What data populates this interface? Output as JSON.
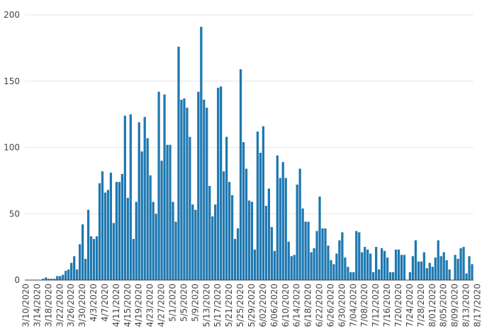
{
  "chart_data": {
    "type": "bar",
    "title": "",
    "xlabel": "",
    "ylabel": "",
    "ylim": [
      0,
      200
    ],
    "yticks": [
      0,
      50,
      100,
      150,
      200
    ],
    "grid": true,
    "bar_color": "#1f78b0",
    "start_date": "3/10/2020",
    "xtick_labels": [
      "3/10/2020",
      "3/14/2020",
      "3/18/2020",
      "3/22/2020",
      "3/26/2020",
      "3/30/2020",
      "4/3/2020",
      "4/7/2020",
      "4/11/2020",
      "4/15/2020",
      "4/19/2020",
      "4/23/2020",
      "4/27/2020",
      "5/1/2020",
      "5/5/2020",
      "5/9/2020",
      "5/13/2020",
      "5/17/2020",
      "5/21/2020",
      "5/25/2020",
      "5/29/2020",
      "6/02/2020",
      "6/06/2020",
      "6/10/2020",
      "6/14/2020",
      "6/18/2020",
      "6/22/2020",
      "6/26/2020",
      "6/30/2020",
      "7/04/2020",
      "7/08/2020",
      "7/12/2020",
      "7/16/2020",
      "7/20/2020",
      "7/24/2020",
      "7/28/2020",
      "8/01/2020",
      "8/05/2020",
      "8/09/2020",
      "8/13/2020",
      "8/17/2020"
    ],
    "values": [
      0,
      0,
      0,
      0,
      0,
      0,
      1,
      2,
      1,
      1,
      1,
      3,
      3,
      4,
      7,
      8,
      13,
      18,
      8,
      27,
      42,
      16,
      53,
      33,
      31,
      33,
      73,
      82,
      66,
      68,
      81,
      43,
      74,
      74,
      80,
      124,
      62,
      125,
      31,
      59,
      119,
      97,
      123,
      107,
      79,
      59,
      50,
      142,
      90,
      140,
      102,
      102,
      59,
      44,
      176,
      136,
      137,
      130,
      108,
      57,
      53,
      142,
      191,
      136,
      130,
      71,
      48,
      57,
      145,
      146,
      82,
      108,
      74,
      64,
      31,
      39,
      159,
      104,
      84,
      60,
      59,
      23,
      112,
      96,
      116,
      56,
      69,
      40,
      22,
      94,
      77,
      89,
      77,
      29,
      18,
      19,
      72,
      84,
      54,
      44,
      44,
      21,
      24,
      37,
      63,
      39,
      39,
      26,
      15,
      12,
      20,
      30,
      36,
      17,
      10,
      6,
      6,
      37,
      36,
      21,
      25,
      23,
      20,
      6,
      25,
      8,
      24,
      22,
      17,
      6,
      6,
      23,
      23,
      19,
      19,
      0,
      6,
      18,
      30,
      14,
      14,
      21,
      9,
      13,
      10,
      17,
      30,
      18,
      21,
      15,
      8,
      0,
      19,
      16,
      24,
      25,
      5,
      18,
      12
    ]
  }
}
